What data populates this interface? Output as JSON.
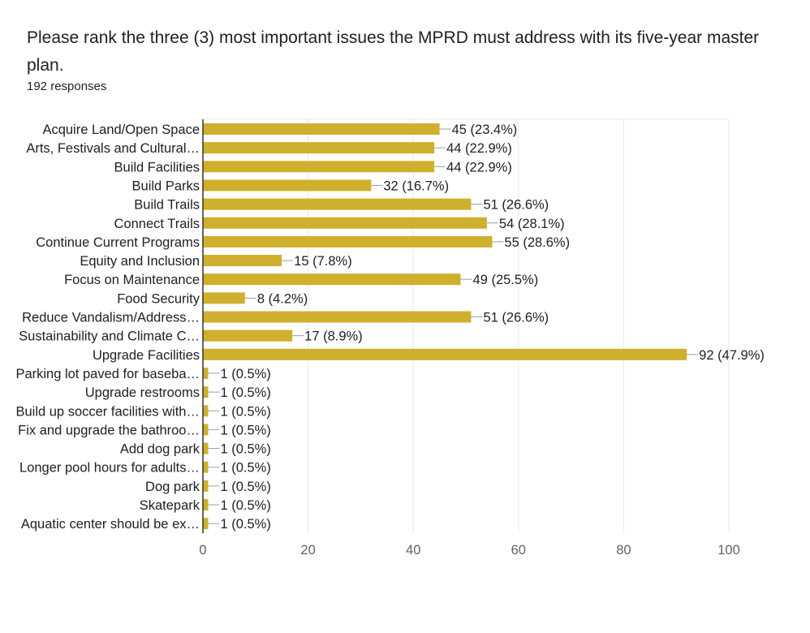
{
  "header": {
    "title": "Please rank the three (3) most important issues the MPRD must address with its five-year master plan.",
    "responses": "192 responses"
  },
  "colors": {
    "bar": "#CFAF2E",
    "grid": "#e8e8e8",
    "axis": "#333333",
    "connector": "#9e9e9e"
  },
  "chart_data": {
    "type": "bar",
    "orientation": "horizontal",
    "title": "Please rank the three (3) most important issues the MPRD must address with its five-year master plan.",
    "xlim": [
      0,
      100
    ],
    "xticks": [
      0,
      20,
      40,
      60,
      80,
      100
    ],
    "categories": [
      "Acquire Land/Open Space",
      "Arts, Festivals and Cultural…",
      "Build Facilities",
      "Build Parks",
      "Build Trails",
      "Connect Trails",
      "Continue Current Programs",
      "Equity and Inclusion",
      "Focus on Maintenance",
      "Food Security",
      "Reduce Vandalism/Address…",
      "Sustainability and Climate C…",
      "Upgrade Facilities",
      "Parking lot paved for baseba…",
      "Upgrade restrooms",
      "Build up soccer facilities with…",
      "Fix and upgrade the bathroo…",
      "Add dog park",
      "Longer pool hours for adults…",
      "Dog park",
      "Skatepark",
      "Aquatic center should be ex…"
    ],
    "values": [
      45,
      44,
      44,
      32,
      51,
      54,
      55,
      15,
      49,
      8,
      51,
      17,
      92,
      1,
      1,
      1,
      1,
      1,
      1,
      1,
      1,
      1
    ],
    "labels": [
      "45 (23.4%)",
      "44 (22.9%)",
      "44 (22.9%)",
      "32 (16.7%)",
      "51 (26.6%)",
      "54 (28.1%)",
      "55 (28.6%)",
      "15 (7.8%)",
      "49 (25.5%)",
      "8 (4.2%)",
      "51 (26.6%)",
      "17 (8.9%)",
      "92 (47.9%)",
      "1 (0.5%)",
      "1 (0.5%)",
      "1 (0.5%)",
      "1 (0.5%)",
      "1 (0.5%)",
      "1 (0.5%)",
      "1 (0.5%)",
      "1 (0.5%)",
      "1 (0.5%)"
    ]
  }
}
